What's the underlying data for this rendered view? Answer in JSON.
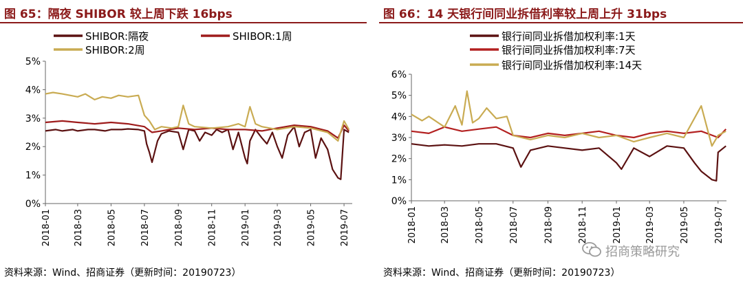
{
  "panels": [
    {
      "title": "图 65：隔夜 SHIBOR 较上周下跌 16bps",
      "source": "资料来源：Wind、招商证券（更新时间：20190723）"
    },
    {
      "title": "图 66：14 天银行间同业拆借利率较上周上升 31bps",
      "source": "资料来源：Wind、招商证券（更新时间：20190723）"
    }
  ],
  "watermark": {
    "text": "招商策略研究"
  },
  "chart_data": [
    {
      "type": "line",
      "x_ticks": [
        "2018-01",
        "2018-03",
        "2018-05",
        "2018-07",
        "2018-09",
        "2018-11",
        "2019-01",
        "2019-03",
        "2019-05",
        "2019-07"
      ],
      "y_ticks": [
        "0%",
        "1%",
        "2%",
        "3%",
        "4%",
        "5%"
      ],
      "ylim": [
        0,
        5
      ],
      "grid": false,
      "legend_position": "top",
      "series": [
        {
          "name": "SHIBOR:隔夜",
          "color": "#5b1111",
          "points": [
            [
              "2018-01",
              2.55
            ],
            [
              "2018-01-20",
              2.6
            ],
            [
              "2018-02",
              2.55
            ],
            [
              "2018-02-20",
              2.6
            ],
            [
              "2018-03",
              2.55
            ],
            [
              "2018-03-20",
              2.6
            ],
            [
              "2018-04",
              2.6
            ],
            [
              "2018-04-20",
              2.55
            ],
            [
              "2018-05",
              2.6
            ],
            [
              "2018-05-20",
              2.6
            ],
            [
              "2018-06",
              2.62
            ],
            [
              "2018-06-20",
              2.6
            ],
            [
              "2018-07",
              2.55
            ],
            [
              "2018-07-05",
              2.1
            ],
            [
              "2018-07-10",
              1.8
            ],
            [
              "2018-07-15",
              1.45
            ],
            [
              "2018-07-25",
              2.2
            ],
            [
              "2018-08",
              2.45
            ],
            [
              "2018-08-15",
              2.55
            ],
            [
              "2018-09",
              2.5
            ],
            [
              "2018-09-10",
              1.9
            ],
            [
              "2018-09-20",
              2.6
            ],
            [
              "2018-10",
              2.55
            ],
            [
              "2018-10-10",
              2.2
            ],
            [
              "2018-10-20",
              2.5
            ],
            [
              "2018-11",
              2.4
            ],
            [
              "2018-11-10",
              2.6
            ],
            [
              "2018-11-20",
              2.5
            ],
            [
              "2018-12",
              2.6
            ],
            [
              "2018-12-10",
              1.9
            ],
            [
              "2018-12-20",
              2.5
            ],
            [
              "2019-01",
              1.6
            ],
            [
              "2019-01-05",
              1.4
            ],
            [
              "2019-01-10",
              2.2
            ],
            [
              "2019-01-20",
              2.6
            ],
            [
              "2019-02",
              2.3
            ],
            [
              "2019-02-10",
              2.1
            ],
            [
              "2019-02-20",
              2.5
            ],
            [
              "2019-03",
              2.0
            ],
            [
              "2019-03-10",
              1.6
            ],
            [
              "2019-03-20",
              2.4
            ],
            [
              "2019-04",
              2.7
            ],
            [
              "2019-04-10",
              2.0
            ],
            [
              "2019-04-20",
              2.5
            ],
            [
              "2019-05",
              2.6
            ],
            [
              "2019-05-10",
              1.6
            ],
            [
              "2019-05-20",
              2.3
            ],
            [
              "2019-06",
              1.9
            ],
            [
              "2019-06-10",
              1.2
            ],
            [
              "2019-06-20",
              0.9
            ],
            [
              "2019-06-25",
              0.85
            ],
            [
              "2019-07",
              2.6
            ],
            [
              "2019-07-10",
              2.5
            ]
          ]
        },
        {
          "name": "SHIBOR:1周",
          "color": "#9e1b1b",
          "points": [
            [
              "2018-01",
              2.85
            ],
            [
              "2018-02",
              2.9
            ],
            [
              "2018-03",
              2.85
            ],
            [
              "2018-04",
              2.8
            ],
            [
              "2018-05",
              2.85
            ],
            [
              "2018-06",
              2.8
            ],
            [
              "2018-07",
              2.7
            ],
            [
              "2018-07-15",
              2.5
            ],
            [
              "2018-08",
              2.55
            ],
            [
              "2018-09",
              2.65
            ],
            [
              "2018-10",
              2.6
            ],
            [
              "2018-11",
              2.65
            ],
            [
              "2018-12",
              2.6
            ],
            [
              "2019-01",
              2.6
            ],
            [
              "2019-02",
              2.55
            ],
            [
              "2019-03",
              2.65
            ],
            [
              "2019-04",
              2.75
            ],
            [
              "2019-05",
              2.7
            ],
            [
              "2019-06",
              2.55
            ],
            [
              "2019-06-20",
              2.3
            ],
            [
              "2019-07",
              2.75
            ],
            [
              "2019-07-10",
              2.55
            ]
          ]
        },
        {
          "name": "SHIBOR:2周",
          "color": "#c9ab52",
          "points": [
            [
              "2018-01",
              3.85
            ],
            [
              "2018-01-15",
              3.9
            ],
            [
              "2018-02",
              3.85
            ],
            [
              "2018-02-15",
              3.8
            ],
            [
              "2018-03",
              3.75
            ],
            [
              "2018-03-15",
              3.85
            ],
            [
              "2018-04",
              3.65
            ],
            [
              "2018-04-15",
              3.75
            ],
            [
              "2018-05",
              3.7
            ],
            [
              "2018-05-15",
              3.8
            ],
            [
              "2018-06",
              3.75
            ],
            [
              "2018-06-20",
              3.8
            ],
            [
              "2018-07",
              3.1
            ],
            [
              "2018-07-10",
              2.9
            ],
            [
              "2018-07-20",
              2.6
            ],
            [
              "2018-08",
              2.7
            ],
            [
              "2018-08-20",
              2.65
            ],
            [
              "2018-09",
              2.7
            ],
            [
              "2018-09-10",
              3.45
            ],
            [
              "2018-09-20",
              2.8
            ],
            [
              "2018-10",
              2.7
            ],
            [
              "2018-11",
              2.65
            ],
            [
              "2018-12",
              2.7
            ],
            [
              "2018-12-20",
              2.8
            ],
            [
              "2019-01",
              2.7
            ],
            [
              "2019-01-10",
              3.4
            ],
            [
              "2019-01-20",
              2.8
            ],
            [
              "2019-02",
              2.7
            ],
            [
              "2019-03",
              2.6
            ],
            [
              "2019-04",
              2.7
            ],
            [
              "2019-05",
              2.65
            ],
            [
              "2019-06",
              2.5
            ],
            [
              "2019-06-20",
              2.2
            ],
            [
              "2019-07",
              2.9
            ],
            [
              "2019-07-10",
              2.6
            ]
          ]
        }
      ]
    },
    {
      "type": "line",
      "x_ticks": [
        "2018-01",
        "2018-03",
        "2018-05",
        "2018-07",
        "2018-09",
        "2018-11",
        "2019-01",
        "2019-03",
        "2019-05",
        "2019-07"
      ],
      "y_ticks": [
        "0%",
        "1%",
        "2%",
        "3%",
        "4%",
        "5%",
        "6%"
      ],
      "ylim": [
        0,
        6
      ],
      "grid": false,
      "legend_position": "top",
      "series": [
        {
          "name": "银行间同业拆借加权利率:1天",
          "color": "#5b1111",
          "points": [
            [
              "2018-01",
              2.7
            ],
            [
              "2018-02",
              2.6
            ],
            [
              "2018-03",
              2.65
            ],
            [
              "2018-04",
              2.6
            ],
            [
              "2018-05",
              2.7
            ],
            [
              "2018-06",
              2.7
            ],
            [
              "2018-07",
              2.5
            ],
            [
              "2018-07-15",
              1.6
            ],
            [
              "2018-08",
              2.4
            ],
            [
              "2018-09",
              2.6
            ],
            [
              "2018-10",
              2.5
            ],
            [
              "2018-11",
              2.4
            ],
            [
              "2018-12",
              2.5
            ],
            [
              "2019-01",
              1.8
            ],
            [
              "2019-01-10",
              1.5
            ],
            [
              "2019-02",
              2.5
            ],
            [
              "2019-03",
              2.1
            ],
            [
              "2019-04",
              2.6
            ],
            [
              "2019-05",
              2.5
            ],
            [
              "2019-05-20",
              1.8
            ],
            [
              "2019-06",
              1.4
            ],
            [
              "2019-06-20",
              1.0
            ],
            [
              "2019-06-28",
              0.95
            ],
            [
              "2019-07",
              2.3
            ],
            [
              "2019-07-15",
              2.6
            ]
          ]
        },
        {
          "name": "银行间同业拆借加权利率:7天",
          "color": "#b32020",
          "points": [
            [
              "2018-01",
              3.3
            ],
            [
              "2018-02",
              3.2
            ],
            [
              "2018-03",
              3.5
            ],
            [
              "2018-04",
              3.3
            ],
            [
              "2018-05",
              3.4
            ],
            [
              "2018-06",
              3.5
            ],
            [
              "2018-07",
              3.1
            ],
            [
              "2018-08",
              3.0
            ],
            [
              "2018-09",
              3.2
            ],
            [
              "2018-10",
              3.1
            ],
            [
              "2018-11",
              3.2
            ],
            [
              "2018-12",
              3.3
            ],
            [
              "2019-01",
              3.1
            ],
            [
              "2019-02",
              3.0
            ],
            [
              "2019-03",
              3.2
            ],
            [
              "2019-04",
              3.3
            ],
            [
              "2019-05",
              3.2
            ],
            [
              "2019-06",
              3.3
            ],
            [
              "2019-07",
              3.0
            ],
            [
              "2019-07-15",
              3.4
            ]
          ]
        },
        {
          "name": "银行间同业拆借加权利率:14天",
          "color": "#c9ab52",
          "points": [
            [
              "2018-01",
              4.1
            ],
            [
              "2018-01-20",
              3.8
            ],
            [
              "2018-02",
              4.0
            ],
            [
              "2018-03",
              3.5
            ],
            [
              "2018-03-20",
              4.5
            ],
            [
              "2018-04",
              3.6
            ],
            [
              "2018-04-10",
              5.2
            ],
            [
              "2018-04-20",
              3.7
            ],
            [
              "2018-05",
              3.9
            ],
            [
              "2018-05-15",
              4.4
            ],
            [
              "2018-06",
              3.9
            ],
            [
              "2018-06-20",
              4.0
            ],
            [
              "2018-07",
              3.1
            ],
            [
              "2018-08",
              2.9
            ],
            [
              "2018-09",
              3.1
            ],
            [
              "2018-10",
              3.0
            ],
            [
              "2018-11",
              3.2
            ],
            [
              "2018-12",
              3.0
            ],
            [
              "2019-01",
              3.1
            ],
            [
              "2019-02",
              2.8
            ],
            [
              "2019-03",
              3.0
            ],
            [
              "2019-04",
              3.2
            ],
            [
              "2019-05",
              3.0
            ],
            [
              "2019-06",
              4.5
            ],
            [
              "2019-06-20",
              2.6
            ],
            [
              "2019-07",
              3.1
            ],
            [
              "2019-07-15",
              3.3
            ]
          ]
        }
      ]
    }
  ]
}
